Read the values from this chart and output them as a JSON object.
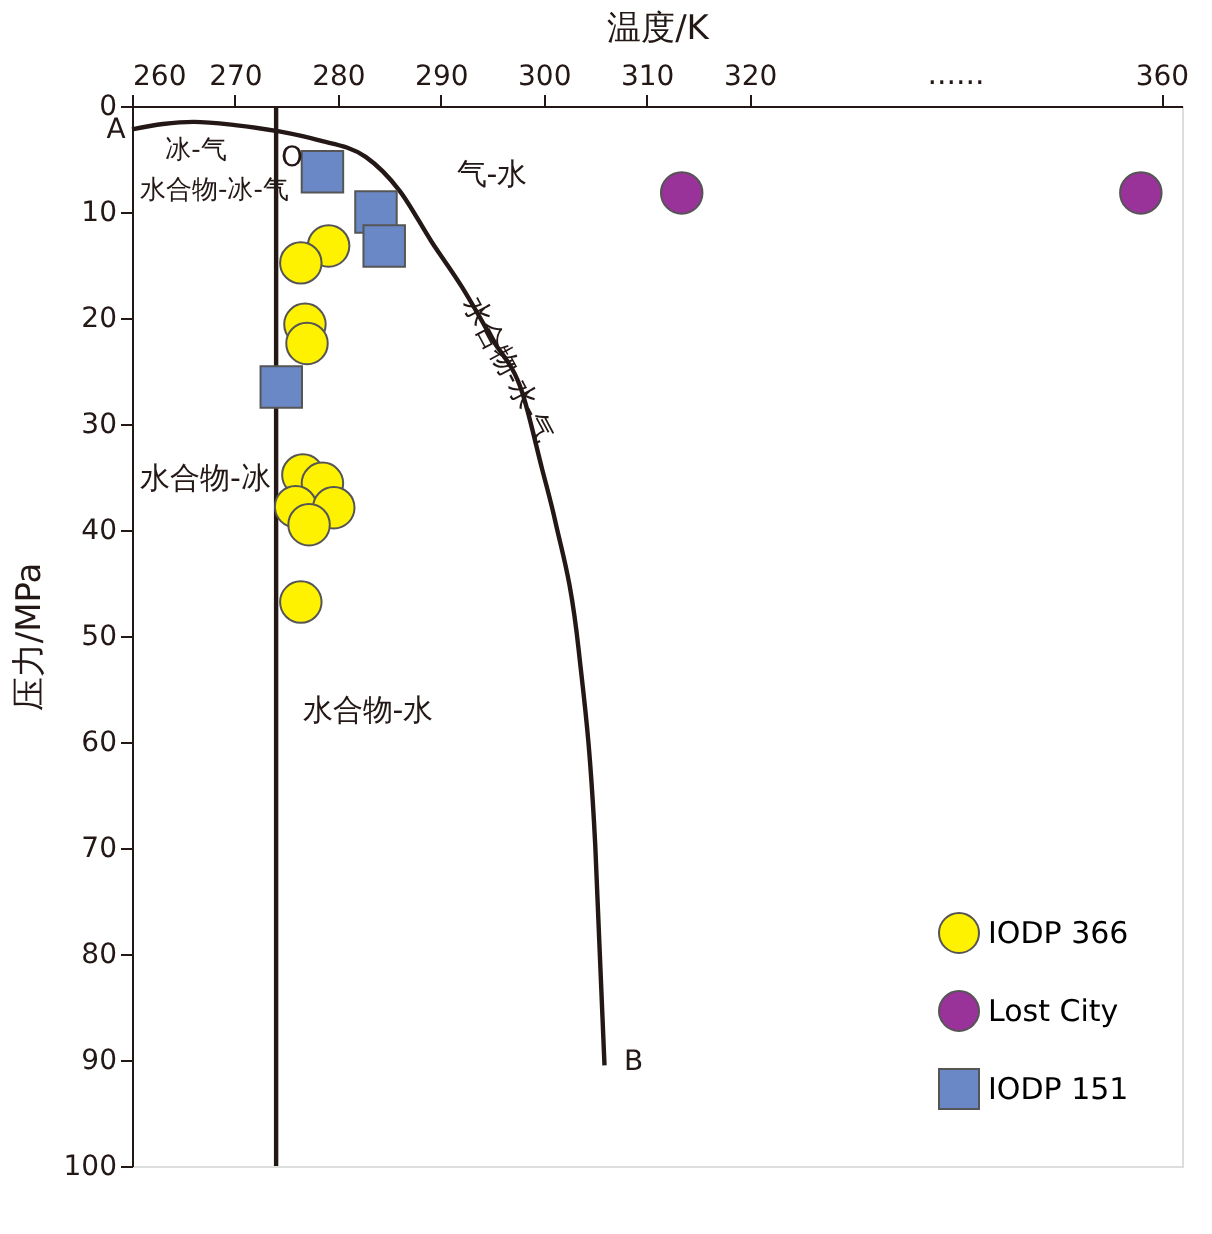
{
  "chart_data": {
    "type": "scatter",
    "xlabel": "温度/K",
    "ylabel": "压力/MPa",
    "xlim": [
      260,
      362
    ],
    "xticks": [
      260,
      270,
      280,
      290,
      300,
      310,
      320,
      360
    ],
    "ylim": [
      100,
      0
    ],
    "yticks": [
      0,
      10,
      20,
      30,
      40,
      50,
      60,
      70,
      80,
      90,
      100
    ],
    "grid": false,
    "legend": "bottom right",
    "series": [
      {
        "name": "IODP 366",
        "color": "#fff200",
        "marker": "circle",
        "x": [
          279.1,
          276.4,
          276.8,
          277.0,
          276.6,
          278.5,
          275.9,
          279.6,
          277.2,
          276.4
        ],
        "values": [
          13.2,
          14.8,
          20.6,
          22.4,
          34.8,
          35.6,
          37.8,
          37.9,
          39.5,
          46.8
        ]
      },
      {
        "name": "Lost City",
        "color": "#993399",
        "marker": "circle",
        "x": [
          313.4,
          358
        ],
        "values": [
          8.2,
          8.2
        ]
      },
      {
        "name": "IODP 151",
        "color": "#6b88c6",
        "marker": "square",
        "x": [
          278.5,
          283.7,
          284.5,
          274.5
        ],
        "values": [
          6.2,
          10.0,
          13.2,
          26.5
        ]
      },
      {
        "type": "line",
        "color": "#231815",
        "x": [
          260,
          263,
          266,
          270,
          274.3,
          278,
          282.7,
          286,
          289.1,
          292,
          295.0,
          297.9,
          299.8,
          301.1,
          303.4,
          305.0,
          305.9
        ],
        "values": [
          2.2,
          1.7,
          1.5,
          1.8,
          2.4,
          3.2,
          4.8,
          8.0,
          12.8,
          17.0,
          22.0,
          27.0,
          34.1,
          39.1,
          51.4,
          69.7,
          90.5
        ]
      }
    ],
    "ref_lines": [
      {
        "axis": "x",
        "value": 274,
        "color": "#231815"
      }
    ],
    "annotations": [
      "A",
      "O",
      "B",
      "冰-气",
      "水合物-冰-气",
      "气-水",
      "水合物-水-气",
      "水合物-冰",
      "水合物-水",
      "......"
    ]
  }
}
